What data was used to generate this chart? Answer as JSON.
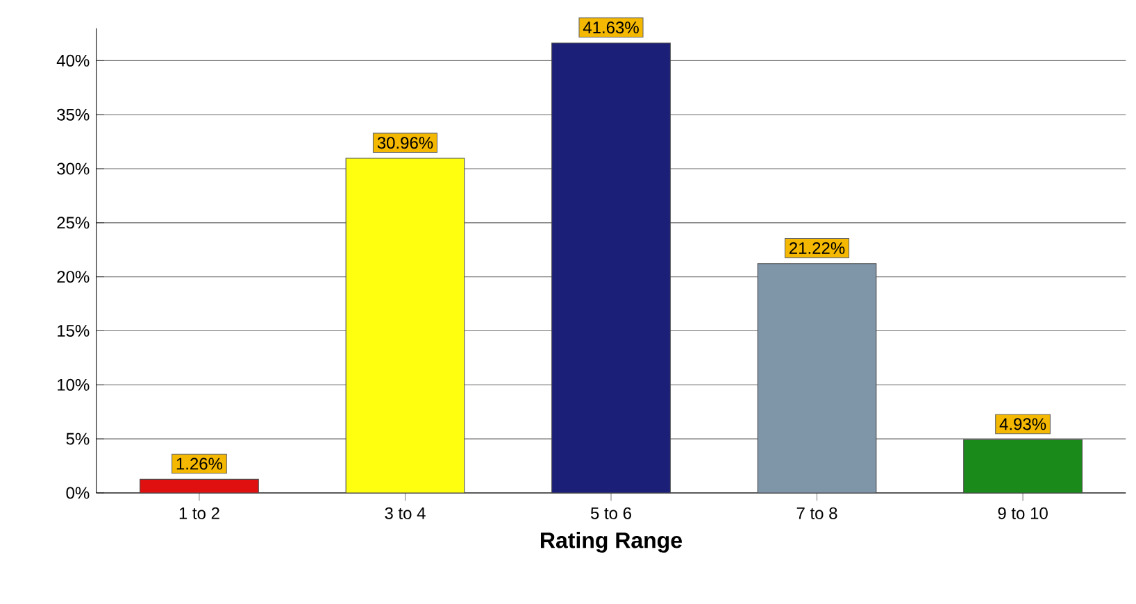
{
  "chart_data": {
    "type": "bar",
    "xlabel": "Rating Range",
    "categories": [
      "1 to 2",
      "3 to 4",
      "5 to 6",
      "7 to 8",
      "9 to 10"
    ],
    "values": [
      1.26,
      30.96,
      41.63,
      21.22,
      4.93
    ],
    "colors": [
      "#e01010",
      "#ffff10",
      "#1c1f78",
      "#7f95a8",
      "#1a8a1a"
    ],
    "value_labels": [
      "1.26%",
      "30.96%",
      "41.63%",
      "21.22%",
      "4.93%"
    ],
    "ylim": [
      0,
      43
    ],
    "yticks": [
      {
        "value": 0,
        "label": "0%"
      },
      {
        "value": 5,
        "label": "5%"
      },
      {
        "value": 10,
        "label": "10%"
      },
      {
        "value": 15,
        "label": "15%"
      },
      {
        "value": 20,
        "label": "20%"
      },
      {
        "value": 25,
        "label": "25%"
      },
      {
        "value": 30,
        "label": "30%"
      },
      {
        "value": 35,
        "label": "35%"
      },
      {
        "value": 40,
        "label": "40%"
      }
    ],
    "grid": "y"
  }
}
